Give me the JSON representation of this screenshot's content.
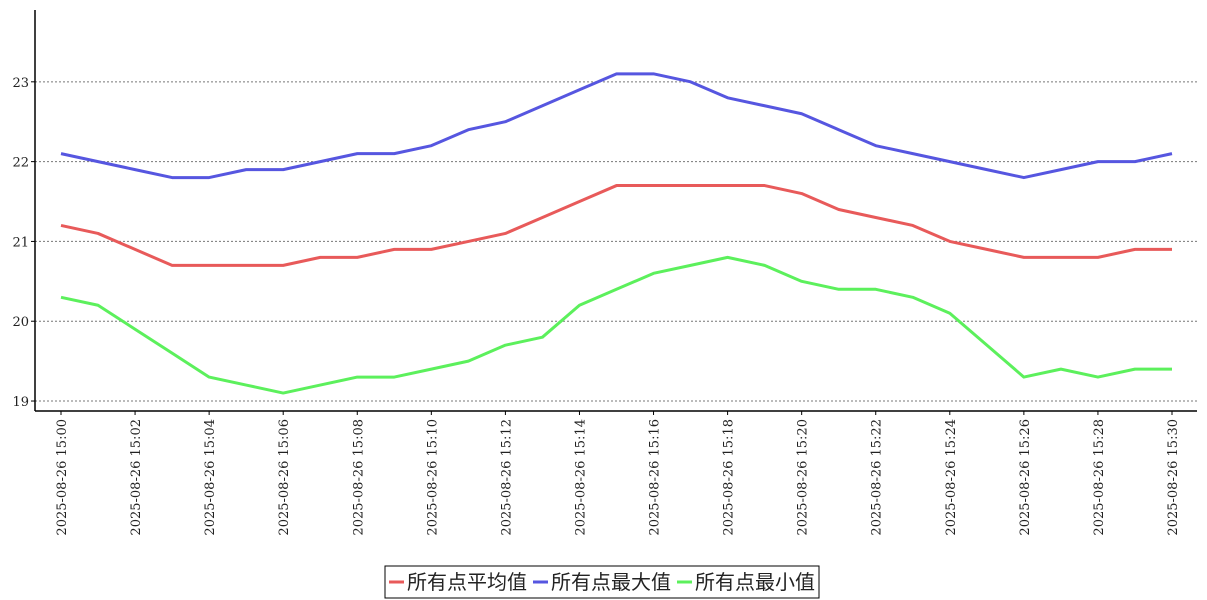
{
  "chart_data": {
    "type": "line",
    "categories": [
      "2025-08-26 15:00",
      null,
      "2025-08-26 15:02",
      null,
      "2025-08-26 15:04",
      null,
      "2025-08-26 15:06",
      null,
      "2025-08-26 15:08",
      null,
      "2025-08-26 15:10",
      null,
      "2025-08-26 15:12",
      null,
      "2025-08-26 15:14",
      null,
      "2025-08-26 15:16",
      null,
      "2025-08-26 15:18",
      null,
      "2025-08-26 15:20",
      null,
      "2025-08-26 15:22",
      null,
      "2025-08-26 15:24",
      null,
      "2025-08-26 15:26",
      null,
      "2025-08-26 15:28",
      null,
      "2025-08-26 15:30"
    ],
    "series": [
      {
        "name": "所有点平均值",
        "color": "#e85a5a",
        "values": [
          21.2,
          21.1,
          20.9,
          20.7,
          20.7,
          20.7,
          20.7,
          20.8,
          20.8,
          20.9,
          20.9,
          21.0,
          21.1,
          21.3,
          21.5,
          21.7,
          21.7,
          21.7,
          21.7,
          21.7,
          21.6,
          21.4,
          21.3,
          21.2,
          21.0,
          20.9,
          20.8,
          20.8,
          20.8,
          20.9,
          20.9
        ]
      },
      {
        "name": "所有点最大值",
        "color": "#5656e0",
        "values": [
          22.1,
          22.0,
          21.9,
          21.8,
          21.8,
          21.9,
          21.9,
          22.0,
          22.1,
          22.1,
          22.2,
          22.4,
          22.5,
          22.7,
          22.9,
          23.1,
          23.1,
          23.0,
          22.8,
          22.7,
          22.6,
          22.4,
          22.2,
          22.1,
          22.0,
          21.9,
          21.8,
          21.9,
          22.0,
          22.0,
          22.1
        ]
      },
      {
        "name": "所有点最小值",
        "color": "#5cf05c",
        "values": [
          20.3,
          20.2,
          19.9,
          19.6,
          19.3,
          19.2,
          19.1,
          19.2,
          19.3,
          19.3,
          19.4,
          19.5,
          19.7,
          19.8,
          20.2,
          20.4,
          20.6,
          20.7,
          20.8,
          20.7,
          20.5,
          20.4,
          20.4,
          20.3,
          20.1,
          19.7,
          19.3,
          19.4,
          19.3,
          19.4,
          19.4
        ]
      }
    ],
    "ylim": [
      18.875,
      23.9
    ],
    "yticks": [
      19,
      20,
      21,
      22,
      23
    ],
    "grid": true,
    "legend": "bottom"
  }
}
